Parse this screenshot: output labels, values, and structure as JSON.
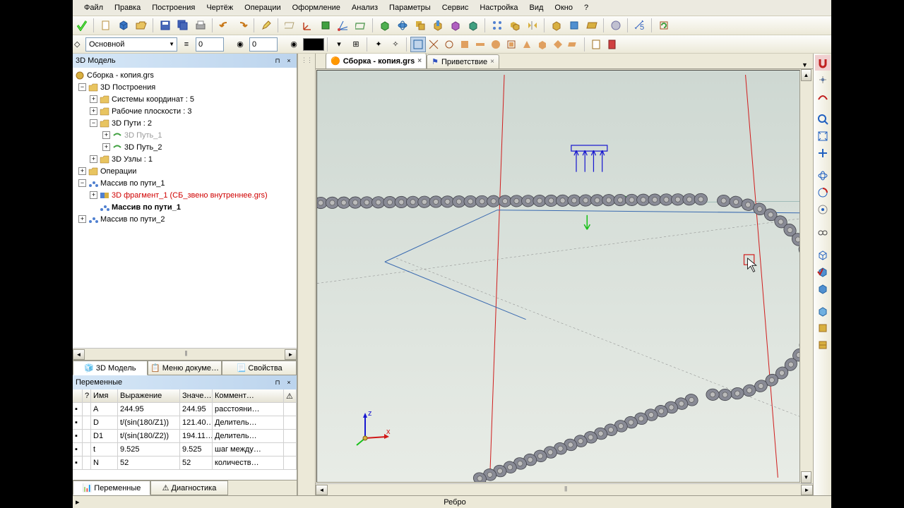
{
  "menu": {
    "file": "Файл",
    "edit": "Правка",
    "build": "Построения",
    "draw": "Чертёж",
    "ops": "Операции",
    "format": "Оформление",
    "analysis": "Анализ",
    "params": "Параметры",
    "service": "Сервис",
    "settings": "Настройка",
    "view": "Вид",
    "window": "Окно",
    "help": "?"
  },
  "layer": {
    "name": "Основной",
    "num1": "0",
    "num2": "0"
  },
  "model_panel": {
    "title": "3D Модель"
  },
  "tree": {
    "root": "Сборка - копия.grs",
    "n1": "3D Построения",
    "n1_1": "Системы координат : 5",
    "n1_2": "Рабочие плоскости : 3",
    "n1_3": "3D Пути : 2",
    "n1_3_1": "3D Путь_1",
    "n1_3_2": "3D Путь_2",
    "n1_4": "3D Узлы : 1",
    "n2": "Операции",
    "n3": "Массив по пути_1",
    "n3_1": "3D фрагмент_1 (СБ_звено внутреннее.grs)",
    "n3_2": "Массив по пути_1",
    "n4": "Массив по пути_2"
  },
  "tabs": {
    "model": "3D Модель",
    "docmenu": "Меню докуме…",
    "props": "Свойства"
  },
  "vars_panel": {
    "title": "Переменные"
  },
  "vars": {
    "cols": {
      "q": "?",
      "name": "Имя",
      "expr": "Выражение",
      "val": "Значе…",
      "com": "Коммент…"
    },
    "rows": [
      {
        "name": "A",
        "expr": "244.95",
        "val": "244.95",
        "com": "расстояни…"
      },
      {
        "name": "D",
        "expr": "t/(sin(180/Z1))",
        "val": "121.40…",
        "com": "Делитель…"
      },
      {
        "name": "D1",
        "expr": "t/(sin(180/Z2))",
        "val": "194.11…",
        "com": "Делитель…"
      },
      {
        "name": "t",
        "expr": "9.525",
        "val": "9.525",
        "com": "шаг между…"
      },
      {
        "name": "N",
        "expr": "52",
        "val": "52",
        "com": "количеств…"
      }
    ]
  },
  "bottom_tabs": {
    "vars": "Переменные",
    "diag": "Диагностика"
  },
  "doctabs": {
    "t1": "Сборка - копия.grs",
    "t2": "Приветствие"
  },
  "status": {
    "edge": "Ребро"
  },
  "triad": {
    "x": "x",
    "z": "z"
  },
  "colors": {
    "chain": "#888a95",
    "chain_stroke": "#44454c",
    "hole": "#bbbbbb",
    "red_line": "#d02020",
    "teal_line": "#6a9a98",
    "blue_line": "#3a6ab0",
    "vp_bg_top": "#ced8d2",
    "vp_bg_bot": "#e8ece6",
    "arrow_blue": "#1818d0",
    "arrow_green": "#18c018",
    "arrow_red": "#d01818"
  }
}
